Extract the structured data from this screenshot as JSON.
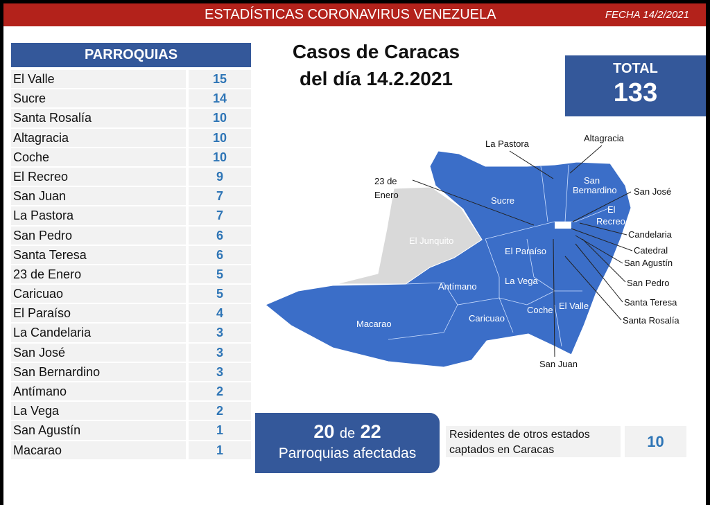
{
  "header": {
    "title": "ESTADÍSTICAS CORONAVIRUS VENEZUELA",
    "date": "FECHA 14/2/2021"
  },
  "table": {
    "header": "PARROQUIAS",
    "rows": [
      {
        "name": "El Valle",
        "value": "15"
      },
      {
        "name": "Sucre",
        "value": "14"
      },
      {
        "name": "Santa Rosalía",
        "value": "10"
      },
      {
        "name": "Altagracia",
        "value": "10"
      },
      {
        "name": "Coche",
        "value": "10"
      },
      {
        "name": "El Recreo",
        "value": "9"
      },
      {
        "name": "San Juan",
        "value": "7"
      },
      {
        "name": "La Pastora",
        "value": "7"
      },
      {
        "name": "San Pedro",
        "value": "6"
      },
      {
        "name": "Santa Teresa",
        "value": "6"
      },
      {
        "name": "23 de Enero",
        "value": "5"
      },
      {
        "name": "Caricuao",
        "value": "5"
      },
      {
        "name": "El Paraíso",
        "value": "4"
      },
      {
        "name": "La Candelaria",
        "value": "3"
      },
      {
        "name": "San José",
        "value": "3"
      },
      {
        "name": "San Bernardino",
        "value": "3"
      },
      {
        "name": "Antímano",
        "value": "2"
      },
      {
        "name": "La Vega",
        "value": "2"
      },
      {
        "name": "San Agustín",
        "value": "1"
      },
      {
        "name": "Macarao",
        "value": "1"
      }
    ]
  },
  "title": {
    "line1": "Casos de Caracas",
    "line2": "del día 14.2.2021"
  },
  "total": {
    "label": "TOTAL",
    "value": "133"
  },
  "affected": {
    "count": "20",
    "of": "de",
    "total": "22",
    "label": "Parroquias afectadas"
  },
  "residents": {
    "label_line1": "Residentes de otros estados",
    "label_line2": "captados en Caracas",
    "value": "10"
  },
  "map": {
    "colors": {
      "affected": "#3b6ec8",
      "unaffected": "#d9d9d9"
    },
    "inner_labels": {
      "junquito": "El Junquito",
      "sucre": "Sucre",
      "paraiso": "El Paraíso",
      "antimano": "Antímano",
      "lavega": "La Vega",
      "macarao": "Macarao",
      "caricuao": "Caricuao",
      "coche": "Coche",
      "elvalle": "El Valle",
      "sanbern1": "San",
      "sanbern2": "Bernardino",
      "recreo1": "El",
      "recreo2": "Recreo"
    },
    "callouts": {
      "lapastora": "La Pastora",
      "altagracia": "Altagracia",
      "enero1": "23 de",
      "enero2": "Enero",
      "sanjose": "San José",
      "candelaria": "Candelaria",
      "catedral": "Catedral",
      "sanagustin": "San Agustín",
      "sanpedro": "San Pedro",
      "santateresa": "Santa Teresa",
      "santarosalia": "Santa Rosalía",
      "sanjuan": "San Juan"
    }
  }
}
